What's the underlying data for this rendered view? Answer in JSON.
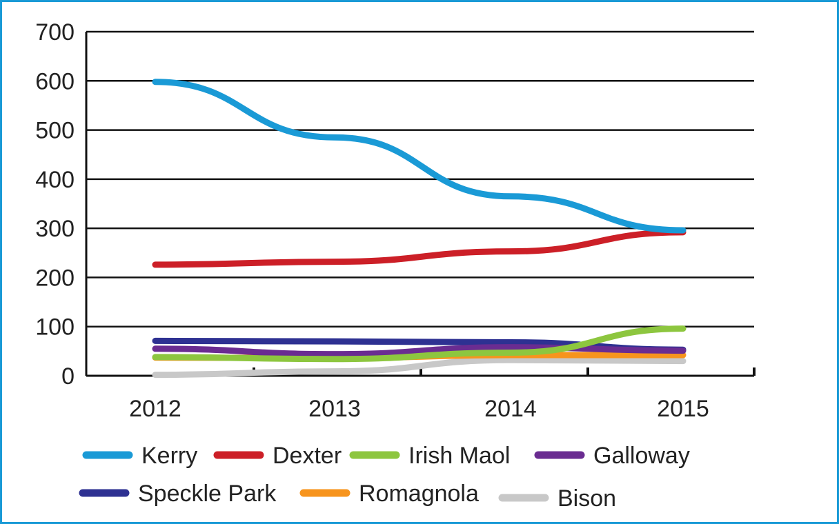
{
  "chart_data": {
    "type": "line",
    "title": "",
    "xlabel": "",
    "ylabel": "",
    "x": [
      "2012",
      "2013",
      "2014",
      "2015"
    ],
    "ylim": [
      0,
      700
    ],
    "y_ticks": [
      "0",
      "100",
      "200",
      "300",
      "400",
      "500",
      "600",
      "700"
    ],
    "grid": true,
    "legend_position": "bottom",
    "series": [
      {
        "name": "Kerry",
        "color": "#1a9ad6",
        "values": [
          598,
          485,
          365,
          296
        ]
      },
      {
        "name": "Dexter",
        "color": "#cc1f27",
        "values": [
          226,
          232,
          253,
          292
        ]
      },
      {
        "name": "Irish Maol",
        "color": "#8dc63f",
        "values": [
          38,
          34,
          47,
          96
        ]
      },
      {
        "name": "Galloway",
        "color": "#6a2c91",
        "values": [
          55,
          44,
          58,
          51
        ]
      },
      {
        "name": "Speckle Park",
        "color": "#2e3192",
        "values": [
          71,
          70,
          68,
          53
        ]
      },
      {
        "name": "Romagnola",
        "color": "#f7941d",
        "values": [
          37,
          36,
          42,
          42
        ]
      },
      {
        "name": "Bison",
        "color": "#c8c8c8",
        "values": [
          2,
          9,
          32,
          30
        ]
      }
    ]
  }
}
